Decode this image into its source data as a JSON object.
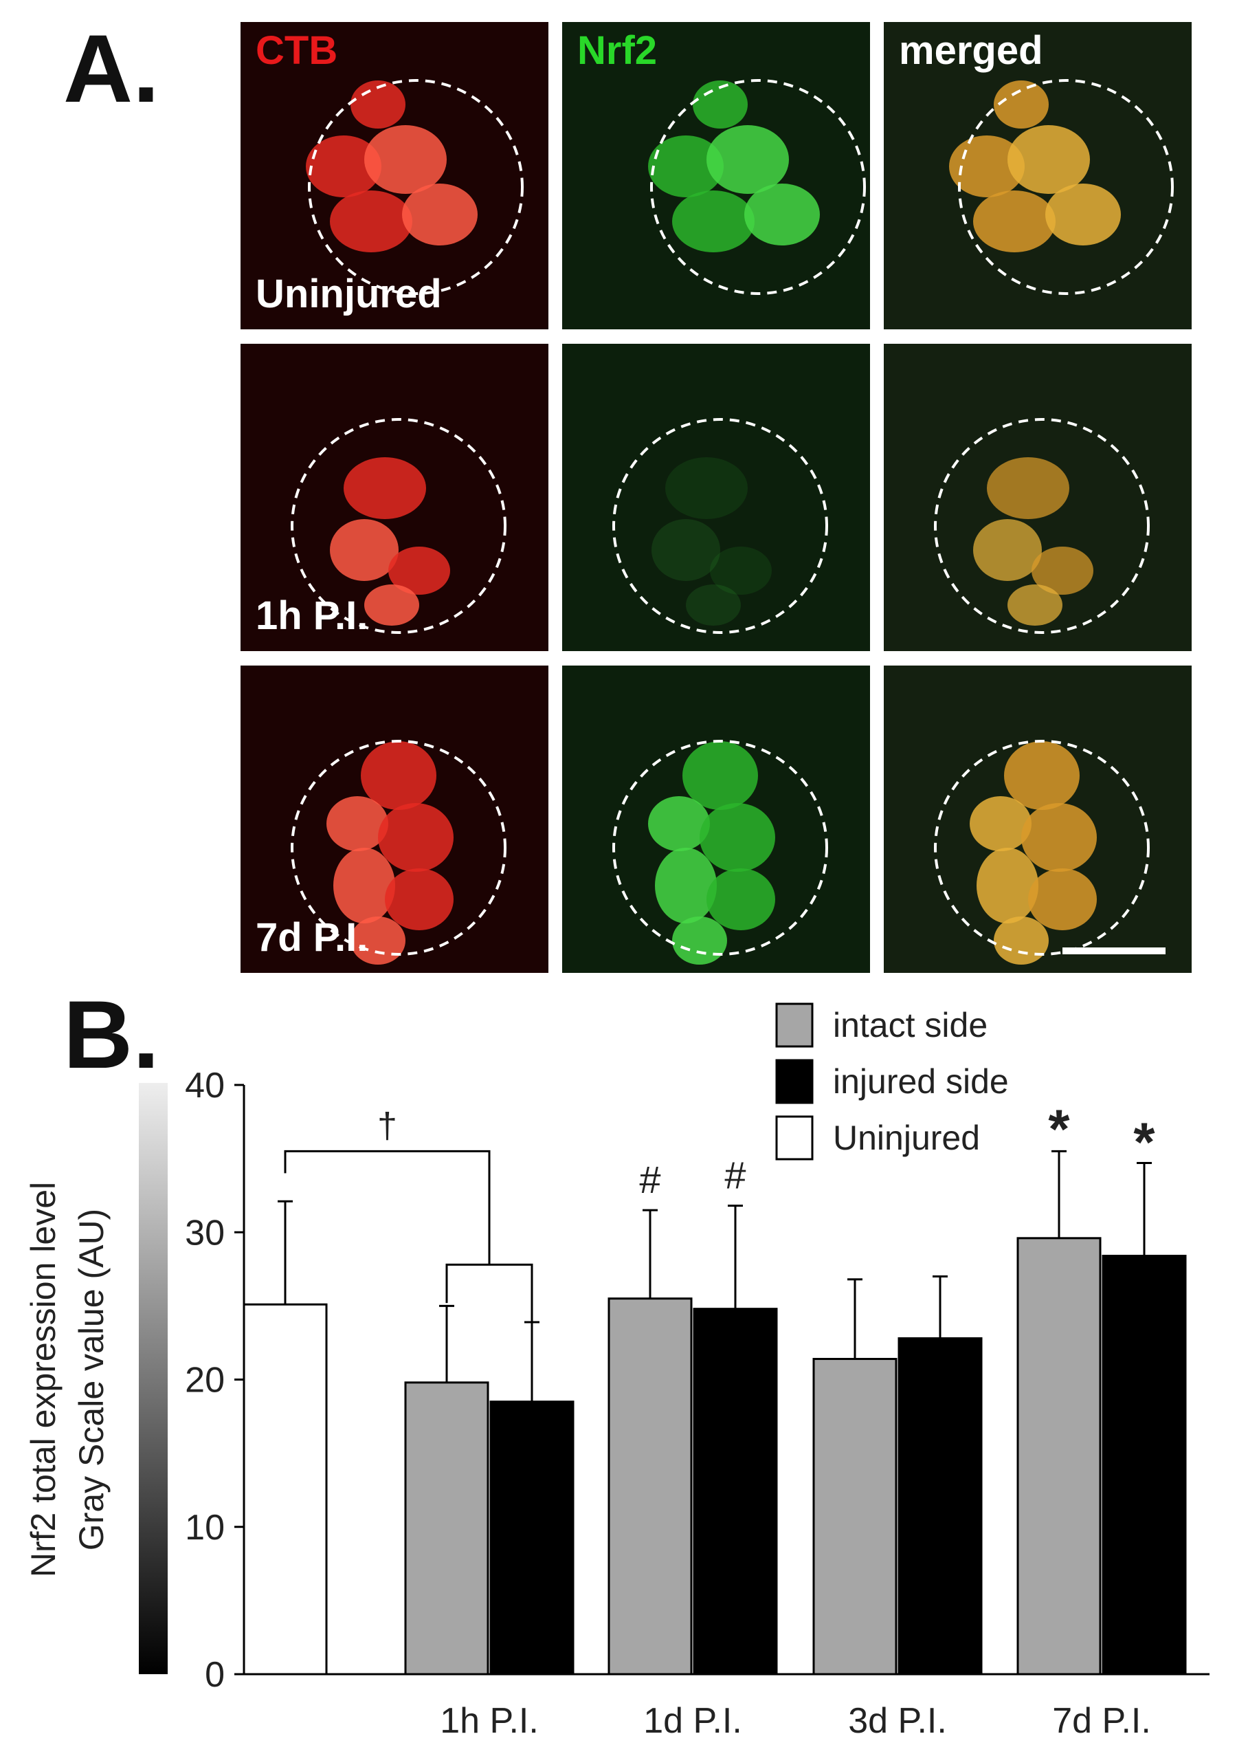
{
  "panel_a": {
    "letter": "A.",
    "channels": [
      "CTB",
      "Nrf2",
      "merged"
    ],
    "channel_colors": [
      "#e8191b",
      "#29d829",
      "#ffffff"
    ],
    "conditions": [
      "Uninjured",
      "1h P.I.",
      "7d P.I."
    ]
  },
  "panel_b": {
    "letter": "B."
  },
  "chart_data": {
    "type": "bar",
    "ylabel_line1": "Nrf2 total expression level",
    "ylabel_line2": "Gray Scale value (AU)",
    "ylim": [
      0,
      40
    ],
    "yticks": [
      0,
      10,
      20,
      30,
      40
    ],
    "categories": [
      "",
      "1h P.I.",
      "1d P.I.",
      "3d P.I.",
      "7d P.I."
    ],
    "legend_position": "top-right",
    "series": [
      {
        "name": "Uninjured",
        "color": "#ffffff",
        "values": [
          25.1,
          null,
          null,
          null,
          null
        ],
        "errors": [
          7.0,
          null,
          null,
          null,
          null
        ]
      },
      {
        "name": "intact side",
        "color": "#a6a6a6",
        "values": [
          null,
          19.8,
          25.5,
          21.4,
          29.6
        ],
        "errors": [
          null,
          5.2,
          6.0,
          5.4,
          5.9
        ]
      },
      {
        "name": "injured side",
        "color": "#000000",
        "values": [
          null,
          18.5,
          24.8,
          22.8,
          28.4
        ],
        "errors": [
          null,
          5.4,
          7.0,
          4.2,
          6.3
        ]
      }
    ],
    "annotations": [
      {
        "text": "†",
        "type": "bracket",
        "between": "Uninjured vs 1h P.I."
      },
      {
        "text": "#",
        "category": "1d P.I.",
        "series": "intact side"
      },
      {
        "text": "#",
        "category": "1d P.I.",
        "series": "injured side"
      },
      {
        "text": "*",
        "category": "7d P.I.",
        "series": "intact side"
      },
      {
        "text": "*",
        "category": "7d P.I.",
        "series": "injured side"
      }
    ]
  }
}
